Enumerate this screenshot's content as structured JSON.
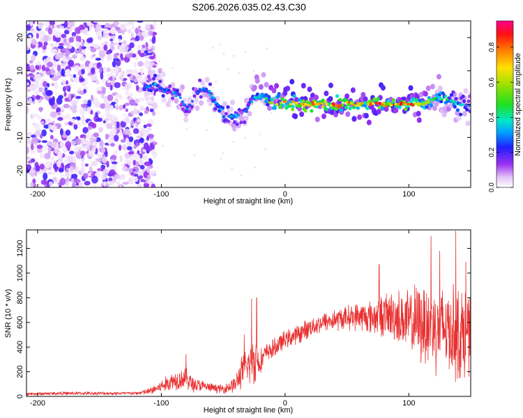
{
  "title": "S206.2026.035.02.43.C30",
  "chart_data": [
    {
      "type": "heatmap",
      "name": "spectrogram",
      "xlabel": "Height of straight line (km)",
      "ylabel": "Frequency (Hz)",
      "xlim": [
        -209,
        150
      ],
      "ylim": [
        -25,
        25
      ],
      "xticks": [
        -200,
        -100,
        0,
        100
      ],
      "xtick_labels": [
        "-200",
        "-100",
        "0",
        "100"
      ],
      "yticks": [
        -20,
        -10,
        0,
        10,
        20
      ],
      "ytick_labels": [
        "-20",
        "-10",
        "0",
        "10",
        "20"
      ],
      "noise_region_x": [
        -209,
        -113
      ],
      "ridge": {
        "x": [
          -112,
          -105,
          -100,
          -95,
          -90,
          -85,
          -80,
          -75,
          -70,
          -65,
          -60,
          -55,
          -50,
          -45,
          -40,
          -35,
          -30,
          -25,
          -20,
          -15,
          -10,
          -5,
          0,
          10,
          20,
          30,
          40,
          50,
          60,
          70,
          80,
          90,
          100,
          110,
          120,
          130,
          140,
          150
        ],
        "freq": [
          5,
          6,
          4.5,
          4,
          3.5,
          2,
          -1.5,
          1,
          4,
          4.5,
          3,
          0,
          -2.5,
          -4,
          -3.5,
          -3.5,
          -1.5,
          2.5,
          2,
          1.5,
          0.5,
          0.5,
          0.5,
          0,
          0,
          0,
          -0.5,
          0,
          0,
          0,
          0,
          0,
          0,
          0,
          1.5,
          2,
          0,
          -1
        ],
        "amplitude": [
          0.3,
          0.35,
          0.3,
          0.3,
          0.35,
          0.3,
          0.35,
          0.25,
          0.3,
          0.3,
          0.4,
          0.35,
          0.4,
          0.35,
          0.35,
          0.3,
          0.35,
          0.4,
          0.45,
          0.55,
          0.6,
          0.75,
          0.8,
          0.9,
          0.85,
          0.7,
          0.9,
          0.85,
          0.7,
          0.9,
          0.85,
          0.85,
          0.9,
          0.7,
          0.5,
          0.45,
          0.4,
          0.3
        ]
      }
    },
    {
      "type": "colorbar",
      "name": "amplitude-colorbar",
      "label": "Normalized spectral amplitude",
      "range": [
        0,
        0.95
      ],
      "ticks": [
        0.0,
        0.2,
        0.4,
        0.6,
        0.8
      ],
      "tick_labels": [
        "0.0",
        "0.2",
        "0.4",
        "0.6",
        "0.8"
      ]
    },
    {
      "type": "line",
      "name": "snr",
      "xlabel": "Height of straight line (km)",
      "ylabel": "SNR (10 * v/v)",
      "xlim": [
        -209,
        150
      ],
      "ylim": [
        0,
        1350
      ],
      "xticks": [
        -200,
        -100,
        0,
        100
      ],
      "xtick_labels": [
        "-200",
        "-100",
        "0",
        "100"
      ],
      "yticks": [
        0,
        200,
        400,
        600,
        800,
        1000,
        1200
      ],
      "ytick_labels": [
        "0",
        "200",
        "400",
        "600",
        "800",
        "1000",
        "1200"
      ],
      "series": [
        {
          "name": "SNR",
          "color": "#e83030",
          "envelope": {
            "x": [
              -209,
              -180,
              -150,
              -120,
              -110,
              -100,
              -90,
              -80,
              -75,
              -70,
              -60,
              -50,
              -45,
              -40,
              -35,
              -30,
              -25,
              -20,
              -15,
              -10,
              -5,
              0,
              10,
              20,
              30,
              40,
              50,
              60,
              70,
              80,
              90,
              100,
              110,
              120,
              130,
              140,
              150
            ],
            "mean": [
              20,
              25,
              25,
              25,
              40,
              80,
              130,
              150,
              100,
              90,
              70,
              60,
              80,
              100,
              200,
              250,
              300,
              280,
              360,
              380,
              420,
              460,
              500,
              560,
              600,
              620,
              640,
              650,
              640,
              660,
              650,
              600,
              600,
              560,
              560,
              500,
              520
            ],
            "spread": [
              15,
              15,
              15,
              15,
              30,
              60,
              90,
              100,
              80,
              60,
              40,
              40,
              60,
              80,
              150,
              180,
              250,
              120,
              80,
              90,
              90,
              80,
              90,
              90,
              90,
              100,
              110,
              130,
              160,
              200,
              250,
              300,
              380,
              420,
              400,
              450,
              400
            ]
          },
          "peaks": [
            {
              "x": -80,
              "y": 340
            },
            {
              "x": -33,
              "y": 500
            },
            {
              "x": -27,
              "y": 790
            },
            {
              "x": -23,
              "y": 800
            },
            {
              "x": 76,
              "y": 1070
            },
            {
              "x": 118,
              "y": 1300
            },
            {
              "x": 125,
              "y": 1180
            },
            {
              "x": 138,
              "y": 1340
            },
            {
              "x": 146,
              "y": 1090
            }
          ]
        }
      ]
    }
  ]
}
